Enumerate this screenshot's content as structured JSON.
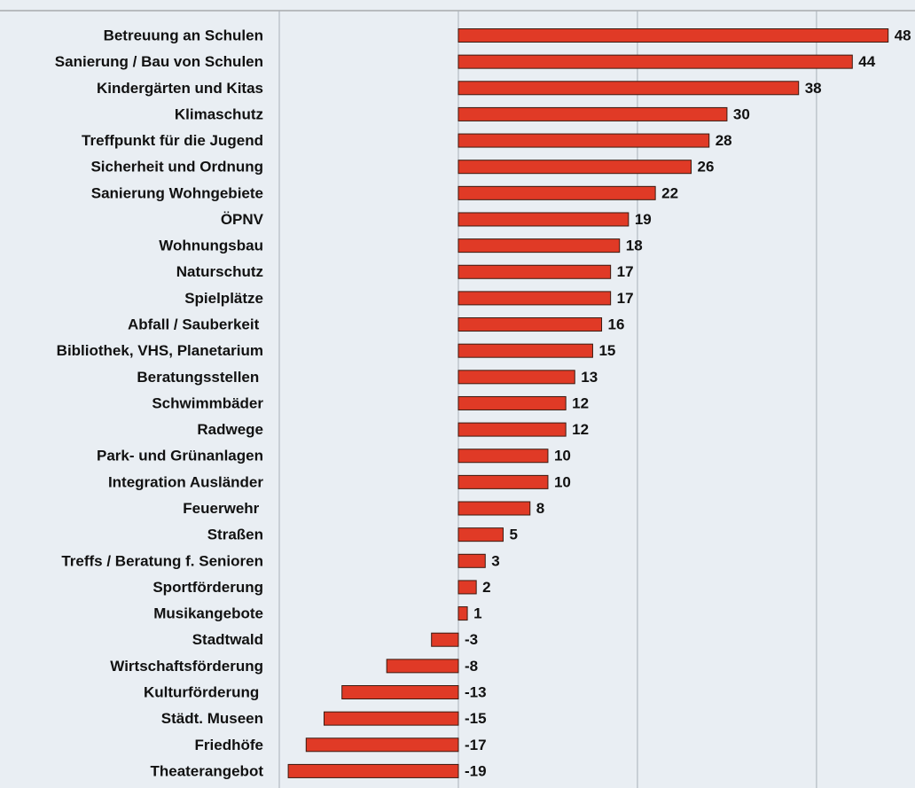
{
  "chart_data": {
    "type": "bar",
    "orientation": "horizontal",
    "categories": [
      "Betreuung an Schulen",
      "Sanierung / Bau von Schulen",
      "Kindergärten und Kitas",
      "Klimaschutz",
      "Treffpunkt für die Jugend",
      "Sicherheit und Ordnung",
      "Sanierung Wohngebiete",
      "ÖPNV",
      "Wohnungsbau",
      "Naturschutz",
      "Spielplätze",
      "Abfall / Sauberkeit ",
      "Bibliothek, VHS, Planetarium",
      "Beratungsstellen ",
      "Schwimmbäder",
      "Radwege",
      "Park- und Grünanlagen",
      "Integration Ausländer",
      "Feuerwehr ",
      "Straßen",
      "Treffs / Beratung f. Senioren",
      "Sportförderung",
      "Musikangebote",
      "Stadtwald",
      "Wirtschaftsförderung",
      "Kulturförderung ",
      "Städt. Museen",
      "Friedhöfe",
      "Theaterangebot"
    ],
    "values": [
      48,
      44,
      38,
      30,
      28,
      26,
      22,
      19,
      18,
      17,
      17,
      16,
      15,
      13,
      12,
      12,
      10,
      10,
      8,
      5,
      3,
      2,
      1,
      -3,
      -8,
      -13,
      -15,
      -17,
      -19
    ],
    "color": "#e03a26",
    "xlim": [
      -20,
      51
    ],
    "xticks": [
      -20,
      0,
      20,
      40
    ],
    "grid": true
  }
}
